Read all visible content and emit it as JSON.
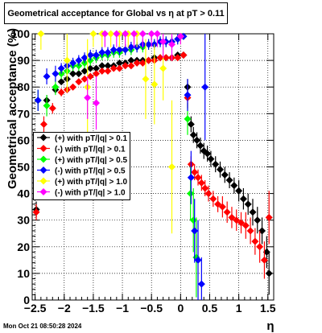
{
  "chart_data": {
    "type": "scatter",
    "title": "Geometrical acceptance for Global vs   η at pT > 0.11",
    "xlabel": "η",
    "ylabel": "Geometrical acceptance (%)",
    "xlim": [
      -2.55,
      1.6
    ],
    "ylim": [
      0,
      100
    ],
    "xticks": [
      -2.5,
      -2,
      -1.5,
      -1,
      -0.5,
      0,
      0.5,
      1,
      1.5
    ],
    "xtick_labels": [
      "−2.5",
      "−2",
      "−1.5",
      "−1",
      "−0.5",
      "0",
      "0.5",
      "1",
      "1.5"
    ],
    "yticks": [
      0,
      10,
      20,
      30,
      40,
      50,
      60,
      70,
      80,
      90,
      100
    ],
    "ytick_labels": [
      "0",
      "10",
      "20",
      "30",
      "40",
      "50",
      "60",
      "70",
      "80",
      "90",
      "100"
    ],
    "grid": true,
    "legend_position": "middle-left",
    "series": [
      {
        "name": "(+) with pT/|q| > 0.1",
        "color": "#000000",
        "x": [
          -2.48,
          -2.3,
          -2.15,
          -2.05,
          -1.95,
          -1.85,
          -1.75,
          -1.65,
          -1.55,
          -1.45,
          -1.35,
          -1.25,
          -1.15,
          -1.05,
          -0.95,
          -0.85,
          -0.75,
          -0.65,
          -0.55,
          -0.45,
          -0.35,
          -0.25,
          -0.15,
          -0.05,
          0.05,
          0.12,
          0.18,
          0.22,
          0.28,
          0.34,
          0.4,
          0.46,
          0.52,
          0.6,
          0.68,
          0.76,
          0.84,
          0.92,
          1.0,
          1.08,
          1.16,
          1.24,
          1.32,
          1.4,
          1.48,
          1.52
        ],
        "y": [
          34,
          75,
          79,
          82,
          83,
          85,
          85,
          86,
          87,
          87,
          88,
          88,
          88,
          89,
          89,
          90,
          90,
          90,
          90,
          91,
          91,
          91,
          91,
          92,
          92,
          80,
          66,
          62,
          60,
          58,
          56,
          55,
          53,
          51,
          49,
          47,
          45,
          43,
          41,
          38,
          36,
          33,
          30,
          26,
          18,
          10
        ],
        "err": [
          3,
          2,
          1.5,
          1,
          1,
          1,
          1,
          1,
          1,
          1,
          1,
          1,
          1,
          1,
          1,
          1,
          1,
          1,
          1,
          1,
          1,
          1,
          1,
          1,
          1,
          3,
          3,
          3,
          3,
          3,
          3,
          3,
          3,
          3,
          3,
          3,
          3,
          3,
          4,
          4,
          4,
          5,
          5,
          5,
          6,
          8
        ]
      },
      {
        "name": "(-) with pT/|q| > 0.1",
        "color": "#ff0000",
        "x": [
          -2.48,
          -2.35,
          -2.2,
          -2.05,
          -1.95,
          -1.85,
          -1.75,
          -1.65,
          -1.55,
          -1.45,
          -1.35,
          -1.25,
          -1.15,
          -1.05,
          -0.95,
          -0.85,
          -0.75,
          -0.65,
          -0.55,
          -0.45,
          -0.35,
          -0.25,
          -0.15,
          -0.05,
          0.05,
          0.12,
          0.18,
          0.24,
          0.3,
          0.36,
          0.42,
          0.48,
          0.56,
          0.64,
          0.72,
          0.8,
          0.88,
          0.96,
          1.04,
          1.12,
          1.2,
          1.28,
          1.36,
          1.44,
          1.52
        ],
        "y": [
          33,
          66,
          72,
          78,
          79,
          80,
          82,
          83,
          84,
          85,
          86,
          86,
          87,
          87,
          88,
          88,
          89,
          89,
          90,
          90,
          91,
          91,
          91,
          91,
          92,
          76,
          51,
          48,
          46,
          44,
          42,
          40,
          38,
          36,
          35,
          33,
          31,
          30,
          29,
          28,
          26,
          22,
          20,
          15,
          31
        ],
        "err": [
          3,
          3,
          2,
          1.5,
          1,
          1,
          1,
          1,
          1,
          1,
          1,
          1,
          1,
          1,
          1,
          1,
          1,
          1,
          1,
          1,
          1,
          1,
          1,
          1,
          1,
          4,
          3,
          3,
          3,
          3,
          3,
          3,
          3,
          3,
          4,
          4,
          4,
          4,
          4,
          5,
          5,
          5,
          6,
          7,
          10
        ]
      },
      {
        "name": "(+) with pT/|q| > 0.5",
        "color": "#00ff00",
        "x": [
          -2.45,
          -2.3,
          -2.15,
          -2.05,
          -1.95,
          -1.85,
          -1.75,
          -1.65,
          -1.55,
          -1.45,
          -1.35,
          -1.25,
          -1.15,
          -1.05,
          -0.95,
          -0.85,
          -0.75,
          -0.65,
          -0.55,
          -0.45,
          -0.35,
          -0.25,
          -0.15,
          -0.05,
          0.05,
          0.12,
          0.17,
          0.22,
          0.27
        ],
        "y": [
          75,
          73,
          80,
          85,
          86,
          88,
          88,
          89,
          90,
          91,
          92,
          92,
          93,
          93,
          94,
          94,
          95,
          95,
          96,
          96,
          97,
          97,
          97,
          98,
          99,
          68,
          40,
          30,
          16
        ],
        "err": [
          4,
          4,
          3,
          2,
          2,
          2,
          2,
          2,
          2,
          2,
          2,
          2,
          2,
          2,
          2,
          2,
          2,
          2,
          2,
          2,
          2,
          2,
          2,
          2,
          1,
          6,
          10,
          12,
          15
        ]
      },
      {
        "name": "(-) with pT/|q| > 0.5",
        "color": "#0000ff",
        "x": [
          -2.45,
          -2.3,
          -2.15,
          -2.05,
          -1.95,
          -1.85,
          -1.75,
          -1.65,
          -1.55,
          -1.45,
          -1.35,
          -1.25,
          -1.15,
          -1.05,
          -0.95,
          -0.85,
          -0.75,
          -0.65,
          -0.55,
          -0.45,
          -0.35,
          -0.25,
          -0.15,
          -0.05,
          0.05,
          0.12,
          0.18,
          0.24,
          0.3,
          0.36,
          0.42
        ],
        "y": [
          75,
          84,
          85,
          87,
          88,
          89,
          90,
          91,
          92,
          92,
          93,
          93,
          94,
          94,
          94,
          95,
          95,
          96,
          96,
          96,
          97,
          97,
          97,
          98,
          99,
          77,
          46,
          26,
          15,
          6,
          80
        ],
        "err": [
          4,
          3,
          3,
          2,
          2,
          2,
          2,
          2,
          2,
          2,
          2,
          2,
          2,
          2,
          2,
          2,
          2,
          2,
          2,
          2,
          2,
          2,
          2,
          2,
          1,
          6,
          10,
          12,
          15,
          10,
          20
        ]
      },
      {
        "name": "(+) with pT/|q| > 1.0",
        "color": "#ffff00",
        "x": [
          -2.4,
          -1.95,
          -1.6,
          -1.5,
          -1.35,
          -1.2,
          -1.05,
          -0.9,
          -0.75,
          -0.6,
          -0.45,
          -0.3,
          -0.15,
          0.0
        ],
        "y": [
          100,
          90,
          80,
          100,
          100,
          100,
          100,
          100,
          100,
          83,
          81,
          87,
          50,
          99
        ],
        "err": [
          6,
          12,
          18,
          5,
          5,
          5,
          5,
          5,
          5,
          15,
          15,
          12,
          25,
          3
        ]
      },
      {
        "name": "(-) with pT/|q| > 1.0",
        "color": "#ff00ff",
        "x": [
          -1.6,
          -1.45,
          -1.3,
          -1.1,
          -0.95,
          -0.8,
          -0.65,
          -0.5,
          -0.4,
          -0.3,
          -0.15,
          0.0
        ],
        "y": [
          76,
          74,
          100,
          100,
          100,
          100,
          100,
          100,
          100,
          97,
          96,
          99
        ],
        "err": [
          8,
          10,
          5,
          5,
          5,
          5,
          5,
          5,
          5,
          6,
          6,
          3
        ]
      }
    ]
  },
  "timestamp": "Mon Oct 21 08:50:28 2024"
}
